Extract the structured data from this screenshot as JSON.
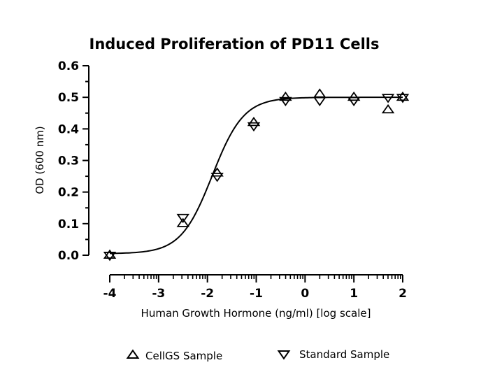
{
  "chart_data": {
    "type": "scatter",
    "title": "Induced Proliferation of PD11 Cells",
    "xlabel": "Human Growth Hormone (ng/ml) [log scale]",
    "ylabel": "OD (600 nm)",
    "xlim": [
      -4,
      2
    ],
    "ylim": [
      0,
      0.6
    ],
    "x_ticks": [
      "-4",
      "-3",
      "-2",
      "-1",
      "0",
      "1",
      "2"
    ],
    "y_ticks": [
      "0.0",
      "0.1",
      "0.2",
      "0.3",
      "0.4",
      "0.5",
      "0.6"
    ],
    "grid": false,
    "legend_position": "bottom",
    "series": [
      {
        "name": "CellGS Sample",
        "marker": "triangle-up",
        "x": [
          -4,
          -2.5,
          -1.8,
          -1.05,
          -0.4,
          0.3,
          1,
          1.7,
          2
        ],
        "y": [
          0.0,
          0.1,
          0.26,
          0.42,
          0.5,
          0.51,
          0.5,
          0.46,
          0.5
        ]
      },
      {
        "name": "Standard Sample",
        "marker": "triangle-down",
        "x": [
          -4,
          -2.5,
          -1.8,
          -1.05,
          -0.4,
          0.3,
          1,
          1.7,
          2
        ],
        "y": [
          0.0,
          0.12,
          0.25,
          0.41,
          0.49,
          0.49,
          0.49,
          0.5,
          0.5
        ]
      }
    ],
    "fit_curve": {
      "bottom": 0.005,
      "top": 0.5,
      "log_ec50": -1.9,
      "hill_slope": 1.35
    }
  }
}
